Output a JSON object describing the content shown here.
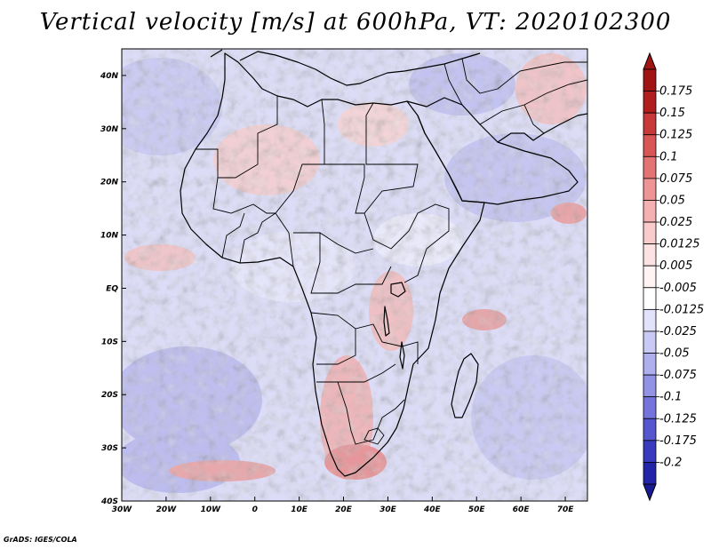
{
  "title": "Vertical velocity [m/s] at 600hPa, VT: 2020102300",
  "credit": "GrADS: IGES/COLA",
  "map": {
    "lon_range": [
      -30,
      75
    ],
    "lat_range": [
      -40,
      45
    ],
    "lon_ticks": [
      {
        "value": -30,
        "label": "30W"
      },
      {
        "value": -20,
        "label": "20W"
      },
      {
        "value": -10,
        "label": "10W"
      },
      {
        "value": 0,
        "label": "0"
      },
      {
        "value": 10,
        "label": "10E"
      },
      {
        "value": 20,
        "label": "20E"
      },
      {
        "value": 30,
        "label": "30E"
      },
      {
        "value": 40,
        "label": "40E"
      },
      {
        "value": 50,
        "label": "50E"
      },
      {
        "value": 60,
        "label": "60E"
      },
      {
        "value": 70,
        "label": "70E"
      }
    ],
    "lat_ticks": [
      {
        "value": 40,
        "label": "40N"
      },
      {
        "value": 30,
        "label": "30N"
      },
      {
        "value": 20,
        "label": "20N"
      },
      {
        "value": 10,
        "label": "10N"
      },
      {
        "value": 0,
        "label": "EQ"
      },
      {
        "value": -10,
        "label": "10S"
      },
      {
        "value": -20,
        "label": "20S"
      },
      {
        "value": -30,
        "label": "30S"
      },
      {
        "value": -40,
        "label": "40S"
      }
    ]
  },
  "colorbar": {
    "levels": [
      {
        "label": "0.175",
        "color": "#b01e1e"
      },
      {
        "label": "0.15",
        "color": "#c83a3a"
      },
      {
        "label": "0.125",
        "color": "#d85656"
      },
      {
        "label": "0.1",
        "color": "#e47474"
      },
      {
        "label": "0.075",
        "color": "#ee9494"
      },
      {
        "label": "0.05",
        "color": "#f5b1b1"
      },
      {
        "label": "0.025",
        "color": "#f9cccc"
      },
      {
        "label": "0.0125",
        "color": "#fce2e2"
      },
      {
        "label": "0.005",
        "color": "#fff3f3"
      },
      {
        "label": "-0.005",
        "color": "#ffffff"
      },
      {
        "label": "-0.0125",
        "color": "#e2e2fb"
      },
      {
        "label": "-0.025",
        "color": "#c9c9f5"
      },
      {
        "label": "-0.05",
        "color": "#afafee"
      },
      {
        "label": "-0.075",
        "color": "#9393e6"
      },
      {
        "label": "-0.1",
        "color": "#7474dc"
      },
      {
        "label": "-0.125",
        "color": "#5656cf"
      },
      {
        "label": "-0.175",
        "color": "#3a3abf"
      },
      {
        "label": "-0.2",
        "color": "#2424a8"
      }
    ],
    "top_color": "#a01414",
    "bottom_color": "#1a1a90"
  }
}
